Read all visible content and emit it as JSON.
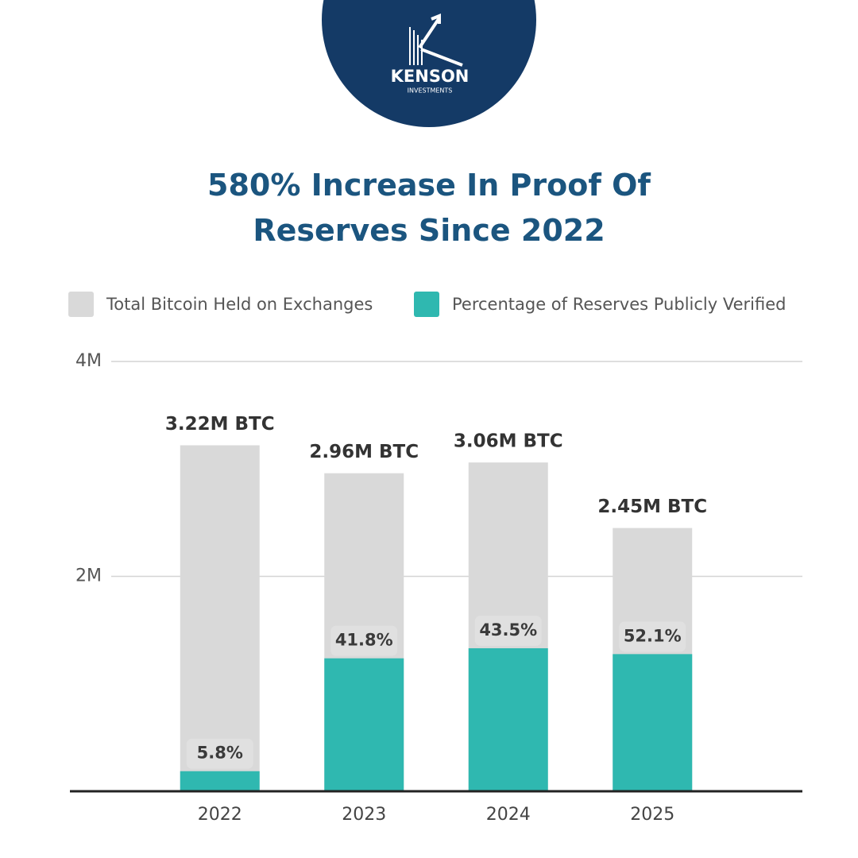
{
  "logo": {
    "name": "KENSON",
    "tagline": "INVESTMENTS"
  },
  "chart_data": {
    "type": "bar",
    "title": "580% Increase In Proof Of Reserves Since 2022",
    "categories": [
      "2022",
      "2023",
      "2024",
      "2025"
    ],
    "series": [
      {
        "name": "Total Bitcoin Held on Exchanges",
        "color": "#d9d9d9",
        "values": [
          3.22,
          2.96,
          3.06,
          2.45
        ],
        "value_labels": [
          "3.22M BTC",
          "2.96M BTC",
          "3.06M BTC",
          "2.45M BTC"
        ]
      },
      {
        "name": "Percentage of Reserves Publicly Verified",
        "color": "#2fb8b0",
        "values": [
          5.8,
          41.8,
          43.5,
          52.1
        ],
        "value_labels": [
          "5.8%",
          "41.8%",
          "43.5%",
          "52.1%"
        ]
      }
    ],
    "ylim": [
      0,
      4
    ],
    "yticks": [
      {
        "value": 2,
        "label": "2M"
      },
      {
        "value": 4,
        "label": "4M"
      }
    ],
    "grid": true
  }
}
